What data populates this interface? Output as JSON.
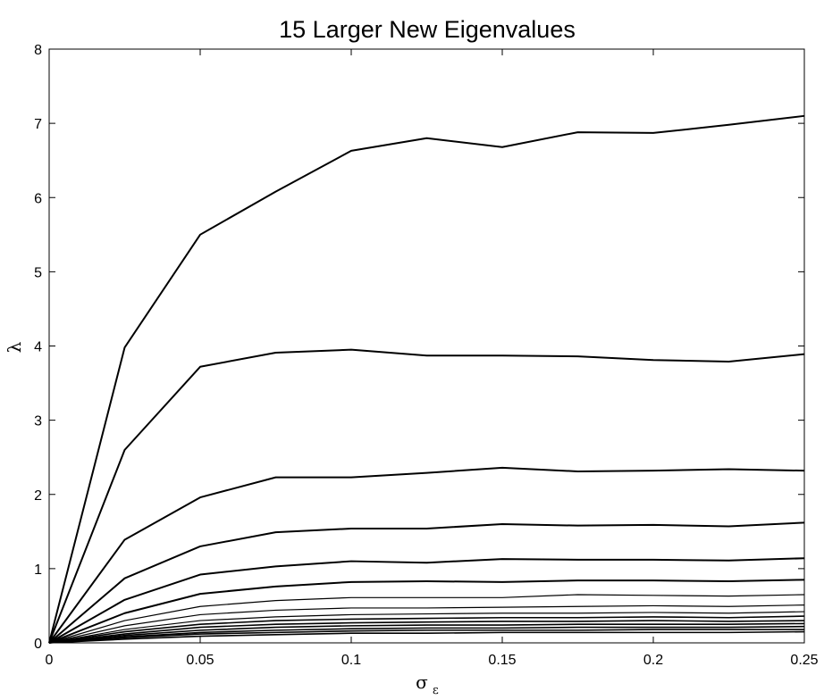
{
  "chart_data": {
    "type": "line",
    "title": "15 Larger New Eigenvalues",
    "xlabel": "σ",
    "xlabel_subscript": "ε",
    "ylabel": "λ",
    "xlim": [
      0,
      0.25
    ],
    "ylim": [
      0,
      8
    ],
    "grid": false,
    "legend": "none",
    "x_ticks": [
      "0",
      "0.05",
      "0.1",
      "0.15",
      "0.2",
      "0.25"
    ],
    "y_ticks": [
      "0",
      "1",
      "2",
      "3",
      "4",
      "5",
      "6",
      "7",
      "8"
    ],
    "x": [
      0,
      0.025,
      0.05,
      0.075,
      0.1,
      0.125,
      0.15,
      0.175,
      0.2,
      0.225,
      0.25
    ],
    "series": [
      {
        "values": [
          0,
          3.98,
          5.5,
          6.08,
          6.63,
          6.8,
          6.68,
          6.88,
          6.87,
          6.98,
          7.1
        ]
      },
      {
        "values": [
          0,
          2.6,
          3.72,
          3.91,
          3.95,
          3.87,
          3.87,
          3.86,
          3.81,
          3.79,
          3.89
        ]
      },
      {
        "values": [
          0,
          1.39,
          1.96,
          2.23,
          2.23,
          2.29,
          2.36,
          2.31,
          2.32,
          2.34,
          2.32
        ]
      },
      {
        "values": [
          0,
          0.87,
          1.3,
          1.49,
          1.54,
          1.54,
          1.6,
          1.58,
          1.59,
          1.57,
          1.62
        ]
      },
      {
        "values": [
          0,
          0.58,
          0.92,
          1.03,
          1.1,
          1.08,
          1.13,
          1.12,
          1.12,
          1.11,
          1.14
        ]
      },
      {
        "values": [
          0,
          0.4,
          0.66,
          0.76,
          0.82,
          0.83,
          0.82,
          0.84,
          0.84,
          0.83,
          0.85
        ]
      },
      {
        "values": [
          0,
          0.3,
          0.49,
          0.57,
          0.61,
          0.61,
          0.61,
          0.65,
          0.64,
          0.63,
          0.65
        ]
      },
      {
        "values": [
          0,
          0.23,
          0.38,
          0.44,
          0.47,
          0.47,
          0.48,
          0.49,
          0.5,
          0.49,
          0.51
        ]
      },
      {
        "values": [
          0,
          0.18,
          0.3,
          0.35,
          0.38,
          0.39,
          0.4,
          0.4,
          0.41,
          0.4,
          0.42
        ]
      },
      {
        "values": [
          0,
          0.15,
          0.25,
          0.3,
          0.32,
          0.33,
          0.34,
          0.34,
          0.35,
          0.34,
          0.36
        ]
      },
      {
        "values": [
          0,
          0.12,
          0.21,
          0.25,
          0.27,
          0.28,
          0.29,
          0.29,
          0.3,
          0.29,
          0.3
        ]
      },
      {
        "values": [
          0,
          0.1,
          0.17,
          0.21,
          0.23,
          0.24,
          0.24,
          0.25,
          0.25,
          0.25,
          0.26
        ]
      },
      {
        "values": [
          0,
          0.08,
          0.14,
          0.17,
          0.19,
          0.2,
          0.2,
          0.21,
          0.21,
          0.21,
          0.22
        ]
      },
      {
        "values": [
          0,
          0.07,
          0.12,
          0.14,
          0.16,
          0.17,
          0.17,
          0.17,
          0.18,
          0.18,
          0.18
        ]
      },
      {
        "values": [
          0,
          0.05,
          0.09,
          0.11,
          0.13,
          0.13,
          0.14,
          0.14,
          0.14,
          0.14,
          0.15
        ]
      }
    ]
  }
}
